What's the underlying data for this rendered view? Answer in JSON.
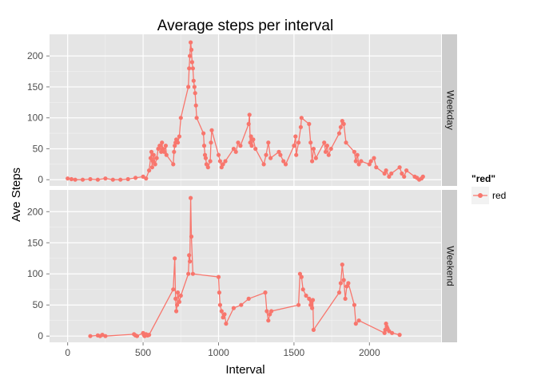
{
  "chart_data": {
    "type": "line",
    "title": "Average steps per interval",
    "xlabel": "Interval",
    "ylabel": "Ave Steps",
    "xlim": [
      -120,
      2475
    ],
    "ylim": [
      -10,
      235
    ],
    "x_ticks": [
      0,
      500,
      1000,
      1500,
      2000
    ],
    "y_ticks": [
      0,
      50,
      100,
      150,
      200
    ],
    "grid": true,
    "legend": {
      "title": "\"red\"",
      "entries": [
        "red"
      ],
      "placement": "right"
    },
    "series_color": "#F8766D",
    "panels": [
      {
        "label": "Weekday",
        "x": [
          0,
          25,
          50,
          100,
          150,
          200,
          250,
          300,
          350,
          400,
          450,
          500,
          520,
          540,
          550,
          555,
          560,
          565,
          570,
          580,
          590,
          600,
          610,
          620,
          625,
          630,
          640,
          650,
          655,
          700,
          705,
          710,
          715,
          720,
          730,
          740,
          750,
          800,
          805,
          810,
          815,
          820,
          825,
          830,
          835,
          840,
          845,
          850,
          855,
          900,
          905,
          910,
          915,
          920,
          930,
          945,
          950,
          955,
          1000,
          1010,
          1020,
          1030,
          1045,
          1100,
          1115,
          1130,
          1145,
          1200,
          1205,
          1210,
          1215,
          1220,
          1230,
          1245,
          1300,
          1315,
          1330,
          1345,
          1400,
          1410,
          1430,
          1445,
          1500,
          1510,
          1515,
          1530,
          1545,
          1550,
          1600,
          1610,
          1620,
          1630,
          1645,
          1700,
          1710,
          1720,
          1730,
          1745,
          1800,
          1810,
          1820,
          1830,
          1845,
          1900,
          1910,
          1920,
          1930,
          1945,
          2000,
          2010,
          2030,
          2045,
          2100,
          2110,
          2130,
          2145,
          2200,
          2215,
          2230,
          2245,
          2300,
          2315,
          2330,
          2345,
          2355
        ],
        "values": [
          2,
          1,
          0,
          0,
          1,
          0,
          2,
          0,
          0,
          1,
          3,
          5,
          2,
          15,
          35,
          45,
          20,
          30,
          40,
          25,
          35,
          50,
          55,
          45,
          60,
          50,
          45,
          55,
          40,
          25,
          45,
          55,
          60,
          65,
          60,
          70,
          100,
          150,
          180,
          200,
          222,
          210,
          190,
          180,
          160,
          150,
          140,
          120,
          100,
          75,
          55,
          40,
          35,
          25,
          20,
          30,
          60,
          80,
          40,
          30,
          20,
          25,
          30,
          50,
          45,
          60,
          55,
          90,
          105,
          60,
          70,
          55,
          65,
          50,
          25,
          40,
          60,
          35,
          45,
          40,
          30,
          25,
          55,
          70,
          40,
          60,
          85,
          100,
          90,
          60,
          30,
          50,
          35,
          60,
          45,
          55,
          40,
          50,
          75,
          85,
          95,
          90,
          60,
          45,
          30,
          40,
          25,
          30,
          25,
          30,
          35,
          20,
          10,
          15,
          5,
          10,
          20,
          10,
          5,
          15,
          5,
          3,
          0,
          2,
          5
        ],
        "overall_max": 222
      },
      {
        "label": "Weekend",
        "x": [
          150,
          200,
          215,
          230,
          250,
          440,
          450,
          460,
          500,
          505,
          510,
          520,
          530,
          540,
          700,
          710,
          715,
          720,
          725,
          730,
          740,
          750,
          800,
          805,
          810,
          815,
          820,
          830,
          1000,
          1005,
          1010,
          1020,
          1030,
          1040,
          1050,
          1100,
          1150,
          1200,
          1310,
          1320,
          1330,
          1340,
          1350,
          1530,
          1540,
          1550,
          1560,
          1580,
          1600,
          1610,
          1615,
          1620,
          1625,
          1630,
          1800,
          1810,
          1820,
          1830,
          1840,
          1850,
          1860,
          1900,
          1910,
          1930,
          2100,
          2105,
          2110,
          2115,
          2120,
          2130,
          2150,
          2200
        ],
        "values": [
          0,
          1,
          0,
          2,
          0,
          3,
          1,
          0,
          5,
          2,
          0,
          3,
          1,
          2,
          75,
          125,
          60,
          40,
          50,
          70,
          55,
          65,
          100,
          130,
          120,
          222,
          160,
          100,
          95,
          70,
          50,
          40,
          30,
          35,
          20,
          45,
          50,
          60,
          70,
          40,
          25,
          35,
          40,
          50,
          100,
          95,
          75,
          65,
          60,
          50,
          55,
          45,
          58,
          10,
          70,
          85,
          115,
          90,
          60,
          80,
          85,
          50,
          20,
          25,
          5,
          10,
          20,
          15,
          12,
          8,
          5,
          2
        ],
        "overall_max": 222
      }
    ]
  }
}
